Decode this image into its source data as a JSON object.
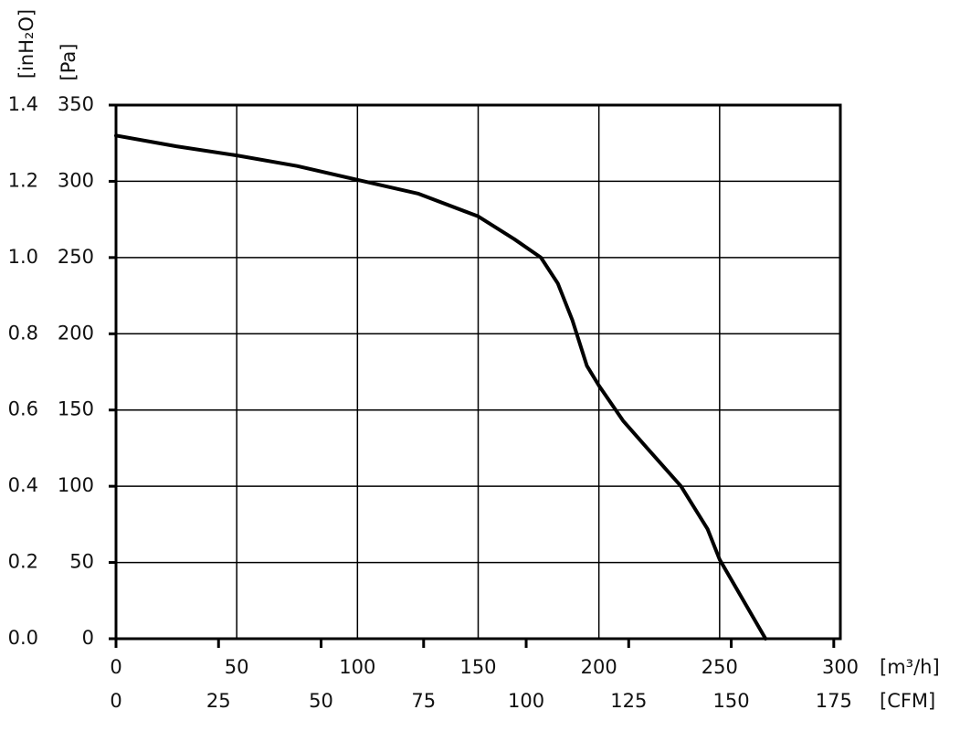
{
  "chart_data": {
    "type": "line",
    "x_unit_label": "[m³/h]",
    "x2_unit_label": "[CFM]",
    "y_unit_label": "[Pa]",
    "y2_unit_label": "[inH₂O]",
    "xlim": [
      0,
      300
    ],
    "xticks": [
      0,
      50,
      100,
      150,
      200,
      250,
      300
    ],
    "x2lim": [
      0,
      176.6
    ],
    "x2ticks": [
      0,
      25,
      50,
      75,
      100,
      125,
      150,
      175
    ],
    "ylim": [
      0,
      350
    ],
    "yticks": [
      0,
      50,
      100,
      150,
      200,
      250,
      300,
      350
    ],
    "y2lim": [
      0,
      1.4
    ],
    "y2ticks": [
      {
        "value": 0,
        "label": "0.0"
      },
      0.2,
      0.4,
      0.6,
      0.8,
      {
        "value": 1,
        "label": "1.0"
      },
      1.2,
      1.4
    ],
    "grid": true,
    "x": [
      0,
      25,
      50,
      75,
      100,
      125,
      150,
      165,
      176,
      183,
      189,
      195,
      200,
      210,
      220,
      234,
      245,
      250,
      269
    ],
    "series": [
      {
        "color": "#000000",
        "values": [
          330,
          323,
          317,
          310,
          301,
          292,
          277,
          262,
          250,
          233,
          209,
          179,
          166,
          143,
          125,
          100,
          72,
          52,
          0
        ]
      }
    ]
  }
}
